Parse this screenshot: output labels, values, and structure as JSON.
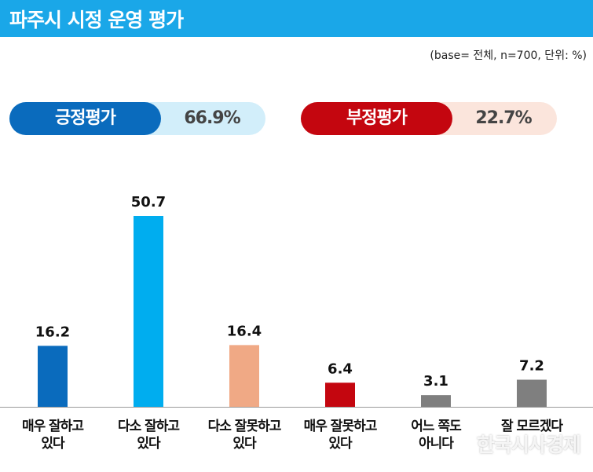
{
  "header": {
    "title": "파주시 시정 운영 평가"
  },
  "base_note": "(base= 전체, n=700, 단위: %)",
  "summary": {
    "positive": {
      "label": "긍정평가",
      "value": "66.9%",
      "color": "#0a6bbd",
      "bg": "#d2eefa"
    },
    "negative": {
      "label": "부정평가",
      "value": "22.7%",
      "color": "#c4060f",
      "bg": "#fbe5dc"
    }
  },
  "chart_data": {
    "type": "bar",
    "categories": [
      "매우 잘하고\n있다",
      "다소 잘하고\n있다",
      "다소 잘못하고\n있다",
      "매우 잘못하고\n있다",
      "어느 쪽도\n아니다",
      "잘 모르겠다"
    ],
    "values": [
      16.2,
      50.7,
      16.4,
      6.4,
      3.1,
      7.2
    ],
    "value_labels": [
      "16.2",
      "50.7",
      "16.4",
      "6.4",
      "3.1",
      "7.2"
    ],
    "colors": [
      "#0a6bbd",
      "#00adef",
      "#f0a985",
      "#c4060f",
      "#7f7f7f",
      "#7f7f7f"
    ],
    "ylim": [
      0,
      50.7
    ]
  },
  "watermark": "한국시사경제"
}
